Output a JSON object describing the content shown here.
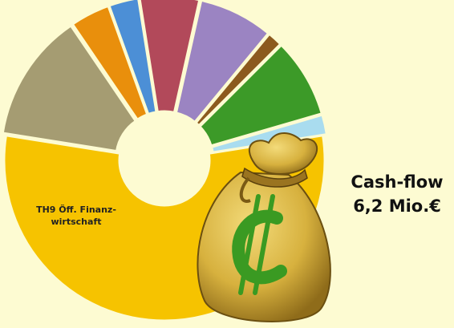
{
  "chart_data": {
    "type": "donut",
    "categories": [
      "TH9 Öff. Finanz-\nwirtschaft",
      null,
      null,
      null,
      null,
      null,
      null,
      null,
      null
    ],
    "values": [
      55,
      2,
      8,
      1.5,
      7.5,
      6,
      3,
      4,
      13
    ],
    "colors": [
      "#f6c300",
      "#a9dcef",
      "#3c9a28",
      "#8c5a1e",
      "#9b84c2",
      "#b2495a",
      "#4c8fd6",
      "#e98f0c",
      "#a59c72"
    ],
    "annotations": [
      "Cash-flow",
      "6,2 Mio.€"
    ]
  }
}
